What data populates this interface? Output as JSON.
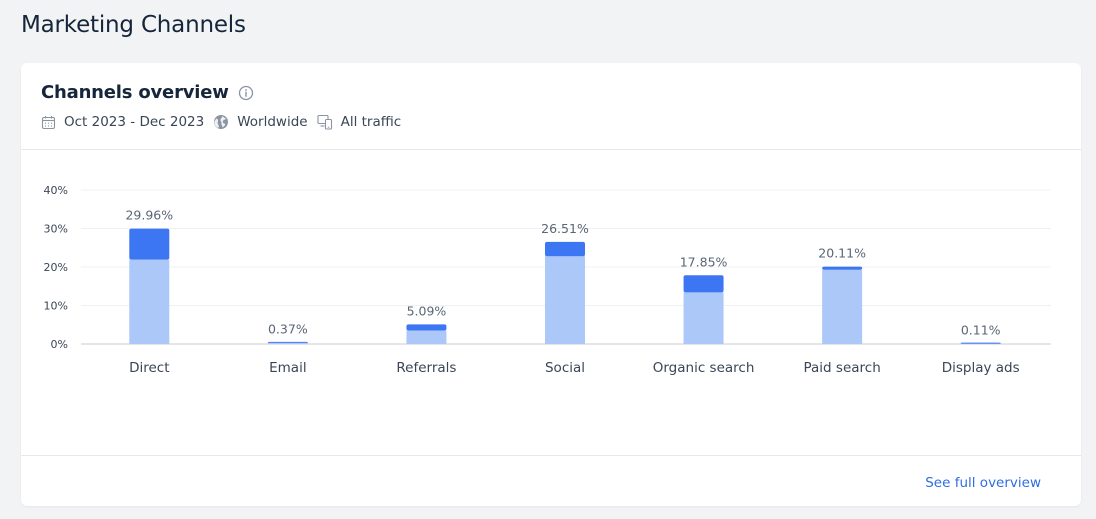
{
  "page": {
    "title": "Marketing Channels"
  },
  "card": {
    "title": "Channels overview",
    "filters": {
      "date_range": "Oct 2023 - Dec 2023",
      "region": "Worldwide",
      "traffic": "All traffic"
    },
    "footer_link": "See full overview"
  },
  "colors": {
    "bar_top": "#3d76f2",
    "bar_bottom": "#abc8f8",
    "link": "#2f6ee0",
    "grid": "#eef0f3"
  },
  "chart_data": {
    "type": "bar",
    "stacked": true,
    "categories": [
      "Direct",
      "Email",
      "Referrals",
      "Social",
      "Organic search",
      "Paid search",
      "Display ads"
    ],
    "totals": [
      29.96,
      0.37,
      5.09,
      26.51,
      17.85,
      20.11,
      0.11
    ],
    "total_labels": [
      "29.96%",
      "0.37%",
      "5.09%",
      "26.51%",
      "17.85%",
      "20.11%",
      "0.11%"
    ],
    "series": [
      {
        "values": [
          21.9,
          0.3,
          3.5,
          22.8,
          13.4,
          19.3,
          0.1
        ]
      },
      {
        "values": [
          8.06,
          0.07,
          1.59,
          3.71,
          4.45,
          0.81,
          0.01
        ]
      }
    ],
    "ylim": [
      0,
      40
    ],
    "yticks": [
      0,
      10,
      20,
      30,
      40
    ],
    "ytick_labels": [
      "0%",
      "10%",
      "20%",
      "30%",
      "40%"
    ],
    "grid": true,
    "legend": "none"
  }
}
